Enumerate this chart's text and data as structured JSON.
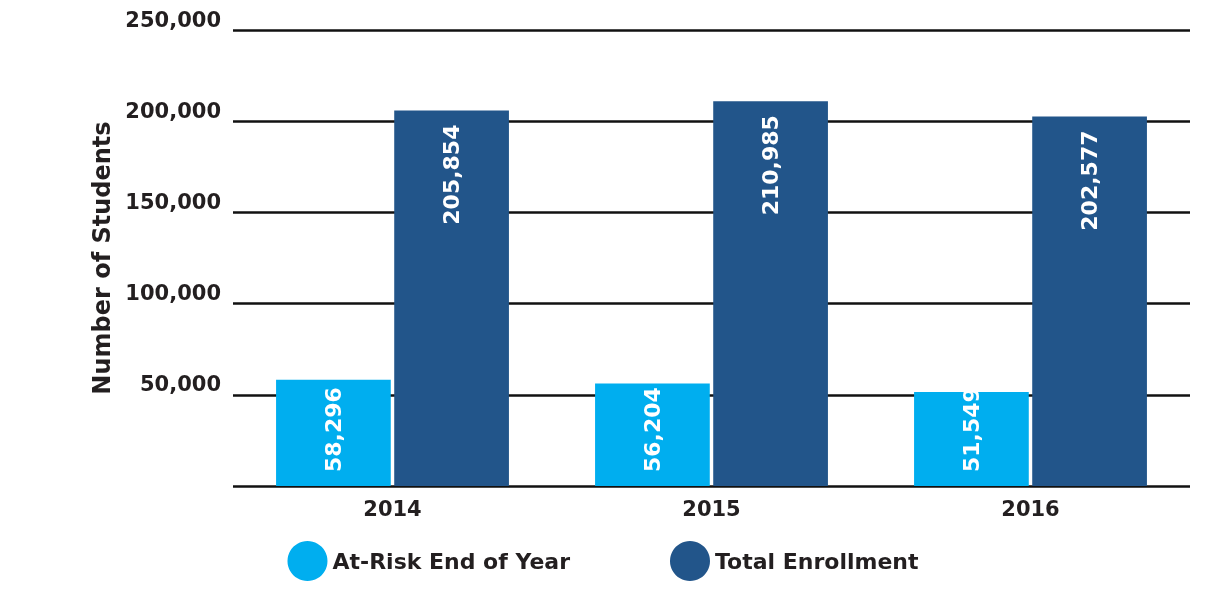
{
  "chart_data": {
    "type": "bar",
    "ylabel": "Number of Students",
    "categories": [
      "2014",
      "2015",
      "2016"
    ],
    "series": [
      {
        "name": "At-Risk End of Year",
        "color": "#00aeef",
        "values": [
          58296,
          56204,
          51549
        ],
        "value_labels": [
          "58,296",
          "56,204",
          "51,549"
        ]
      },
      {
        "name": "Total Enrollment",
        "color": "#22558a",
        "values": [
          205854,
          210985,
          202577
        ],
        "value_labels": [
          "205,854",
          "210,985",
          "202,577"
        ]
      }
    ],
    "ylim": [
      0,
      250000
    ],
    "yticks": [
      {
        "value": 50000,
        "label": "50,000"
      },
      {
        "value": 100000,
        "label": "100,000"
      },
      {
        "value": 150000,
        "label": "150,000"
      },
      {
        "value": 200000,
        "label": "200,000"
      },
      {
        "value": 250000,
        "label": "250,000"
      }
    ],
    "grid": "y",
    "legend": "bottom"
  }
}
